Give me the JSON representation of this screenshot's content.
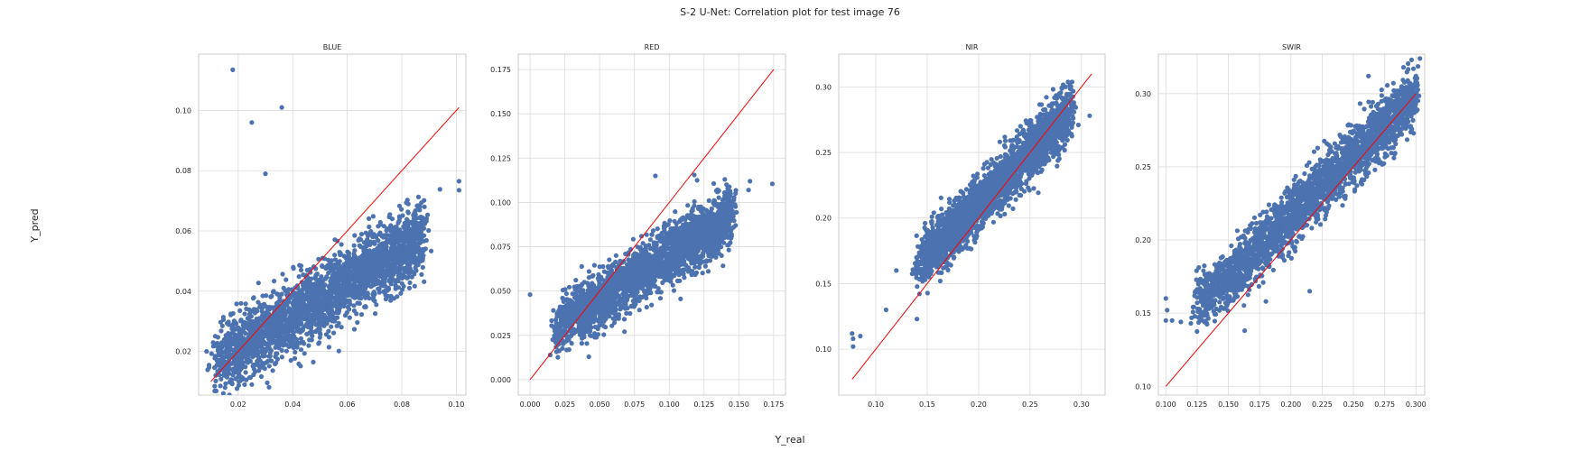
{
  "figure": {
    "title": "S-2 U-Net: Correlation plot for test image 76",
    "xlabel": "Y_real",
    "ylabel": "Y_pred"
  },
  "colors": {
    "points": "#4c72b0",
    "identity_line": "#ff0000",
    "grid": "#dddddd",
    "spine": "#cccccc"
  },
  "chart_data": [
    {
      "type": "scatter",
      "title": "BLUE",
      "xlim": [
        0.0055,
        0.1035
      ],
      "ylim": [
        0.0055,
        0.1187
      ],
      "xticks": [
        "0.02",
        "0.04",
        "0.06",
        "0.08",
        "0.10"
      ],
      "yticks": [
        "0.02",
        "0.04",
        "0.06",
        "0.08",
        "0.10"
      ],
      "identity_line": [
        0.01,
        0.101
      ],
      "cluster": {
        "x_range": [
          0.012,
          0.088
        ],
        "slope": 0.55,
        "intercept": 0.01,
        "spread": 0.006
      },
      "outliers": [
        [
          0.018,
          0.1135
        ],
        [
          0.036,
          0.101
        ],
        [
          0.025,
          0.096
        ],
        [
          0.03,
          0.079
        ],
        [
          0.025,
          0.009
        ],
        [
          0.094,
          0.0738
        ],
        [
          0.101,
          0.0765
        ],
        [
          0.101,
          0.0735
        ],
        [
          0.088,
          0.0535
        ],
        [
          0.085,
          0.0478
        ]
      ]
    },
    {
      "type": "scatter",
      "title": "RED",
      "xlim": [
        -0.0085,
        0.1835
      ],
      "ylim": [
        -0.0087,
        0.1837
      ],
      "xticks": [
        "0.000",
        "0.025",
        "0.050",
        "0.075",
        "0.100",
        "0.125",
        "0.150",
        "0.175"
      ],
      "yticks": [
        "0.000",
        "0.025",
        "0.050",
        "0.075",
        "0.100",
        "0.125",
        "0.150",
        "0.175"
      ],
      "identity_line": [
        0.0,
        0.175
      ],
      "cluster": {
        "x_range": [
          0.018,
          0.145
        ],
        "slope": 0.5,
        "intercept": 0.02,
        "spread": 0.008
      },
      "outliers": [
        [
          0.0,
          0.048
        ],
        [
          0.118,
          0.1155
        ],
        [
          0.12,
          0.1125
        ],
        [
          0.158,
          0.112
        ],
        [
          0.174,
          0.1105
        ],
        [
          0.157,
          0.107
        ],
        [
          0.142,
          0.108
        ],
        [
          0.09,
          0.115
        ]
      ]
    },
    {
      "type": "scatter",
      "title": "NIR",
      "xlim": [
        0.064,
        0.323
      ],
      "ylim": [
        0.065,
        0.325
      ],
      "xticks": [
        "0.10",
        "0.15",
        "0.20",
        "0.25",
        "0.30"
      ],
      "yticks": [
        "0.10",
        "0.15",
        "0.20",
        "0.25",
        "0.30"
      ],
      "identity_line": [
        0.077,
        0.31
      ],
      "cluster": {
        "x_range": [
          0.14,
          0.29
        ],
        "slope": 0.78,
        "intercept": 0.055,
        "spread": 0.01
      },
      "outliers": [
        [
          0.077,
          0.112
        ],
        [
          0.078,
          0.108
        ],
        [
          0.078,
          0.102
        ],
        [
          0.085,
          0.11
        ],
        [
          0.11,
          0.13
        ],
        [
          0.14,
          0.123
        ],
        [
          0.12,
          0.16
        ],
        [
          0.308,
          0.278
        ],
        [
          0.297,
          0.271
        ]
      ]
    },
    {
      "type": "scatter",
      "title": "SWIR",
      "xlim": [
        0.094,
        0.307
      ],
      "ylim": [
        0.094,
        0.327
      ],
      "xticks": [
        "0.100",
        "0.125",
        "0.150",
        "0.175",
        "0.200",
        "0.225",
        "0.250",
        "0.275",
        "0.300"
      ],
      "yticks": [
        "0.10",
        "0.15",
        "0.20",
        "0.25",
        "0.30"
      ],
      "identity_line": [
        0.1,
        0.3
      ],
      "cluster": {
        "x_range": [
          0.125,
          0.3
        ],
        "slope": 0.83,
        "intercept": 0.05,
        "spread": 0.01
      },
      "outliers": [
        [
          0.1,
          0.145
        ],
        [
          0.101,
          0.152
        ],
        [
          0.1,
          0.16
        ],
        [
          0.105,
          0.145
        ],
        [
          0.112,
          0.144
        ],
        [
          0.12,
          0.143
        ],
        [
          0.163,
          0.138
        ],
        [
          0.18,
          0.158
        ],
        [
          0.215,
          0.165
        ],
        [
          0.298,
          0.317
        ],
        [
          0.3,
          0.312
        ],
        [
          0.3,
          0.306
        ],
        [
          0.296,
          0.3
        ],
        [
          0.29,
          0.318
        ],
        [
          0.285,
          0.3
        ],
        [
          0.262,
          0.312
        ]
      ]
    }
  ]
}
